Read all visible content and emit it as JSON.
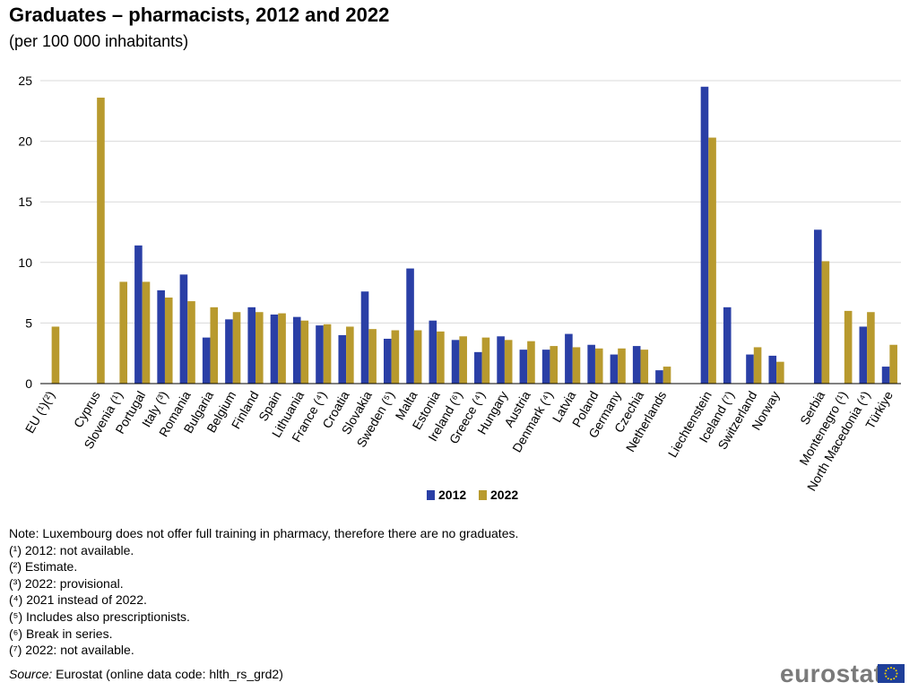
{
  "chart_data": {
    "type": "bar",
    "title": "Graduates – pharmacists, 2012 and 2022",
    "subtitle": "(per 100 000 inhabitants)",
    "xlabel": "",
    "ylabel": "",
    "ylim": [
      0,
      25
    ],
    "yticks": [
      0,
      5,
      10,
      15,
      20,
      25
    ],
    "grid": true,
    "legend_position": "bottom-center",
    "groups": [
      [
        "EU (¹)(²)"
      ],
      [
        "Cyprus",
        "Slovenia (¹)",
        "Portugal",
        "Italy (³)",
        "Romania",
        "Bulgaria",
        "Belgium",
        "Finland",
        "Spain",
        "Lithuania",
        "France (⁴)",
        "Croatia",
        "Slovakia",
        "Sweden (⁵)",
        "Malta",
        "Estonia",
        "Ireland (⁶)",
        "Greece (⁴)",
        "Hungary",
        "Austria",
        "Denmark (⁴)",
        "Latvia",
        "Poland",
        "Germany",
        "Czechia",
        "Netherlands"
      ],
      [
        "Liechtenstein",
        "Iceland (⁷)",
        "Switzerland",
        "Norway"
      ],
      [
        "Serbia",
        "Montenegro (¹)",
        "North Macedonia (⁴)",
        "Türkiye"
      ]
    ],
    "categories": [
      "EU (¹)(²)",
      "Cyprus",
      "Slovenia (¹)",
      "Portugal",
      "Italy (³)",
      "Romania",
      "Bulgaria",
      "Belgium",
      "Finland",
      "Spain",
      "Lithuania",
      "France (⁴)",
      "Croatia",
      "Slovakia",
      "Sweden (⁵)",
      "Malta",
      "Estonia",
      "Ireland (⁶)",
      "Greece (⁴)",
      "Hungary",
      "Austria",
      "Denmark (⁴)",
      "Latvia",
      "Poland",
      "Germany",
      "Czechia",
      "Netherlands",
      "Liechtenstein",
      "Iceland (⁷)",
      "Switzerland",
      "Norway",
      "Serbia",
      "Montenegro (¹)",
      "North Macedonia (⁴)",
      "Türkiye"
    ],
    "series": [
      {
        "name": "2012",
        "color": "#2a3fa6",
        "values": [
          null,
          null,
          null,
          11.4,
          7.7,
          9.0,
          3.8,
          5.3,
          6.3,
          5.7,
          5.5,
          4.8,
          4.0,
          7.6,
          3.7,
          9.5,
          5.2,
          3.6,
          2.6,
          3.9,
          2.8,
          2.8,
          4.1,
          3.2,
          2.4,
          3.1,
          1.1,
          24.5,
          6.3,
          2.4,
          2.3,
          12.7,
          null,
          4.7,
          1.4
        ]
      },
      {
        "name": "2022",
        "color": "#b89a2e",
        "values": [
          4.7,
          23.6,
          8.4,
          8.4,
          7.1,
          6.8,
          6.3,
          5.9,
          5.9,
          5.8,
          5.2,
          4.9,
          4.7,
          4.5,
          4.4,
          4.4,
          4.3,
          3.9,
          3.8,
          3.6,
          3.5,
          3.1,
          3.0,
          2.9,
          2.9,
          2.8,
          1.4,
          20.3,
          null,
          3.0,
          1.8,
          10.1,
          6.0,
          5.9,
          3.2
        ]
      }
    ]
  },
  "notes": [
    "Note: Luxembourg does not offer full training in pharmacy, therefore there are no graduates.",
    "(¹) 2012: not available.",
    "(²) Estimate.",
    "(³) 2022: provisional.",
    "(⁴) 2021 instead of 2022.",
    "(⁵) Includes also prescriptionists.",
    "(⁶) Break in series.",
    "(⁷) 2022: not available."
  ],
  "source": {
    "label": "Source:",
    "text": "Eurostat (online data code: hlth_rs_grd2)"
  },
  "logo": {
    "text": "eurostat",
    "flag_color": "#1f3f99",
    "star_color": "#f5d300"
  }
}
